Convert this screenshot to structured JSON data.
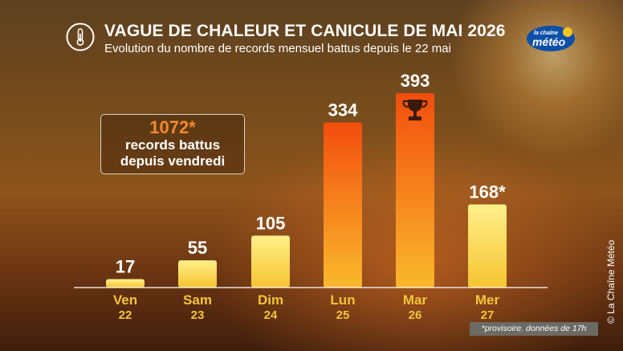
{
  "header": {
    "title": "VAGUE DE CHALEUR ET CANICULE DE MAI 2026",
    "subtitle": "Evolution du nombre de records mensuel battus depuis le 22 mai",
    "thermometer_icon": "thermometer-icon"
  },
  "logo": {
    "line1": "la chaîne",
    "line2": "météo"
  },
  "callout": {
    "value": "1072*",
    "text_line1": "records battus",
    "text_line2": "depuis vendredi"
  },
  "footnote": "*provisoire. données de 17h",
  "copyright": "© La Chaîne Météo",
  "colors": {
    "bar_gradient_top": "#fff08a",
    "bar_gradient_bottom": "#f5c430",
    "highlight_top": "#f24d0e",
    "highlight_bottom": "#f9b82c",
    "label": "#f5c43a"
  },
  "chart_data": {
    "type": "bar",
    "title": "VAGUE DE CHALEUR ET CANICULE DE MAI 2026",
    "categories": [
      "Ven",
      "Sam",
      "Dim",
      "Lun",
      "Mar",
      "Mer"
    ],
    "dates": [
      "22",
      "23",
      "24",
      "25",
      "26",
      "27"
    ],
    "values": [
      17,
      55,
      105,
      334,
      393,
      168
    ],
    "value_labels": [
      "17",
      "55",
      "105",
      "334",
      "393",
      "168*"
    ],
    "highlight": [
      false,
      false,
      false,
      true,
      true,
      false
    ],
    "trophy_on": "Mar",
    "ylim": [
      0,
      393
    ],
    "grid": false
  }
}
